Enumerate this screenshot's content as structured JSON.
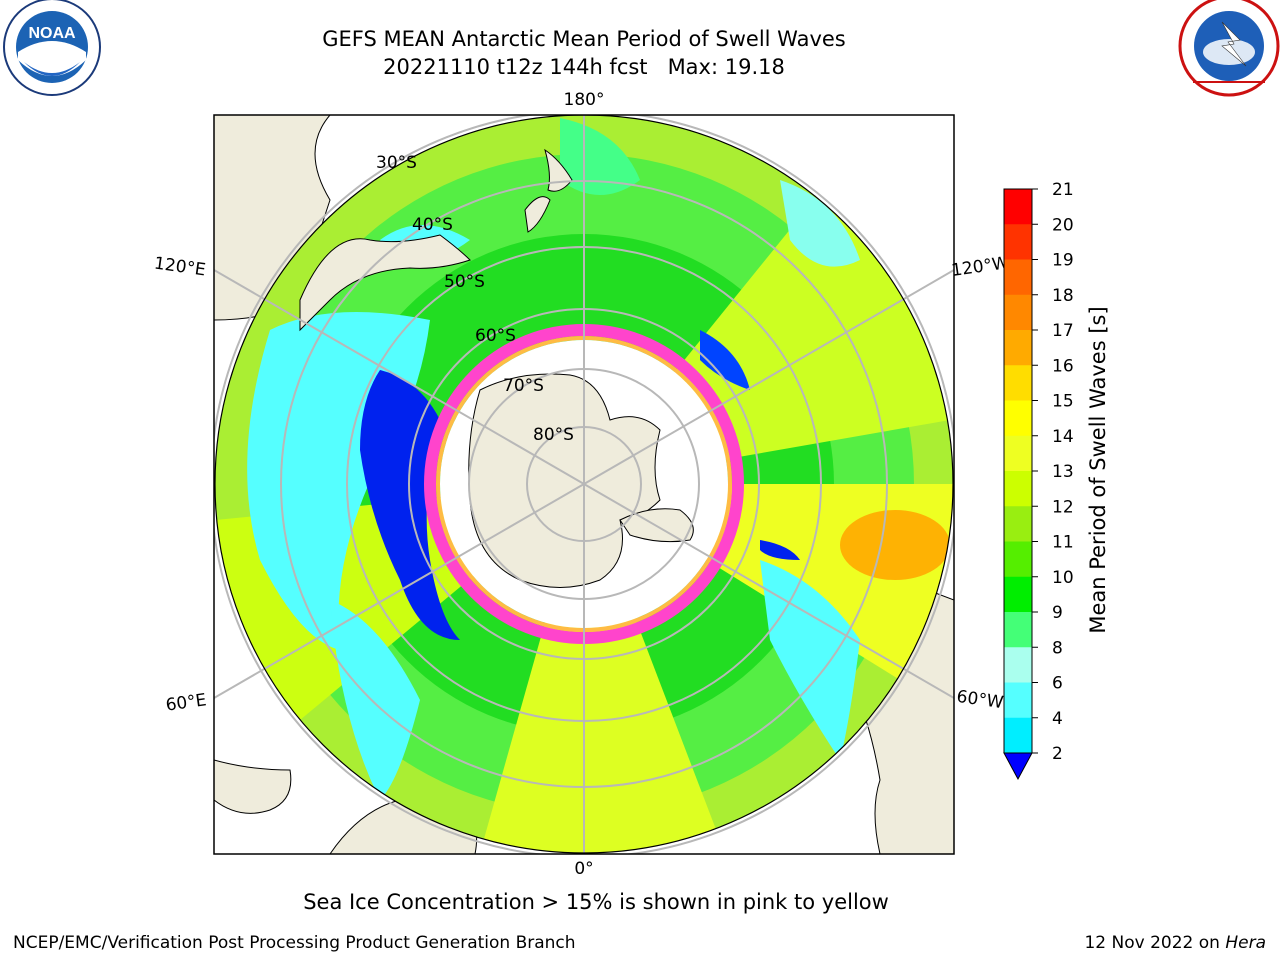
{
  "header": {
    "title_line1": "GEFS MEAN Antarctic Mean Period of Swell Waves",
    "title_line2": "20221110 t12z 144h fcst   Max: 19.18"
  },
  "logos": {
    "left": {
      "name": "noaa-logo",
      "text": "NOAA",
      "ring_text": "NATIONAL OCEANIC AND ATMOSPHERIC ADMINISTRATION · U.S. DEPARTMENT OF COMMERCE"
    },
    "right": {
      "name": "nws-logo",
      "ring_text": "NATIONAL WEATHER SERVICE"
    }
  },
  "map": {
    "projection": "south-polar-stereographic",
    "longitude_labels": [
      "180°",
      "120°E",
      "120°W",
      "60°E",
      "60°W",
      "0°"
    ],
    "latitude_labels": [
      "30°S",
      "40°S",
      "50°S",
      "60°S",
      "70°S",
      "80°S"
    ]
  },
  "colorbar": {
    "label": "Mean Period of Swell Waves [s]",
    "ticks": [
      "21",
      "20",
      "19",
      "18",
      "17",
      "16",
      "15",
      "14",
      "13",
      "12",
      "11",
      "10",
      "9",
      "8",
      "6",
      "4",
      "2"
    ],
    "colors": [
      "#ff0000",
      "#ff3300",
      "#ff6600",
      "#ff8800",
      "#ffaa00",
      "#ffdd00",
      "#ffff00",
      "#eeff22",
      "#ccff00",
      "#99ee11",
      "#55ee00",
      "#00ee00",
      "#44ff77",
      "#aaffee",
      "#55ffff",
      "#00eeff",
      "#0088ff",
      "#0022ee"
    ],
    "extend_color": "#0000ff"
  },
  "note": "Sea Ice Concentration > 15% is shown in pink to yellow",
  "footer": {
    "left": "NCEP/EMC/Verification Post Processing Product Generation Branch",
    "right_prefix": "12 Nov 2022 on ",
    "right_machine": "Hera"
  }
}
